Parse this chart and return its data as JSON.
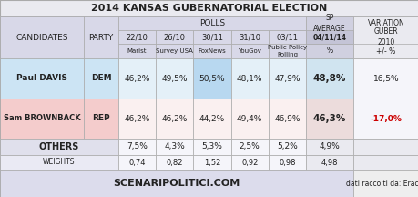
{
  "title": "2014 KANSAS GUBERNATORIAL ELECTION",
  "col_headers_row1": [
    "22/10",
    "26/10",
    "30/11",
    "31/10",
    "03/11"
  ],
  "col_headers_row2": [
    "Marist",
    "Survey USA",
    "FoxNews",
    "YouGov",
    "Public Policy\nPolling"
  ],
  "davis_values": [
    "46,2%",
    "49,5%",
    "50,5%",
    "48,1%",
    "47,9%"
  ],
  "davis_sp": "48,8%",
  "davis_var": "16,5%",
  "brownback_values": [
    "46,2%",
    "46,2%",
    "44,2%",
    "49,4%",
    "46,9%"
  ],
  "brownback_sp": "46,3%",
  "brownback_var": "-17,0%",
  "others_values": [
    "7,5%",
    "4,3%",
    "5,3%",
    "2,5%",
    "5,2%"
  ],
  "others_sp": "4,9%",
  "weights_values": [
    "0,74",
    "0,82",
    "1,52",
    "0,92",
    "0,98"
  ],
  "weights_sp": "4,98",
  "footer_left": "SCENARIPOLITICI.COM",
  "footer_right": "dati raccolti da: Eraclio",
  "sp_header_line1": "SP\nAVERAGE",
  "sp_header_line2": "04/11/14",
  "sp_header_line3": "%",
  "var_header_line1": "VARIATION",
  "var_header_line2": "GUBER\n2010",
  "var_header_line3": "+/- %",
  "bg_light": "#eaeaf0",
  "bg_header": "#d8d8e8",
  "bg_sp": "#d0d0e0",
  "bg_white": "#f5f5fa",
  "bg_davis_name": "#cce4f4",
  "bg_davis_data": "#e4f0f8",
  "bg_davis_foxnews": "#b8d8f0",
  "bg_davis_sp": "#d0e4f0",
  "bg_brown_name": "#f4cccc",
  "bg_brown_data": "#faf0f0",
  "bg_brown_sp": "#ecdcdc",
  "bg_others": "#e0e0ec",
  "bg_weights": "#eaeaf4",
  "bg_footer": "#dcdcec",
  "bg_footer_right": "#eeeeee",
  "color_var_neg": "#cc0000",
  "color_black": "#333333"
}
